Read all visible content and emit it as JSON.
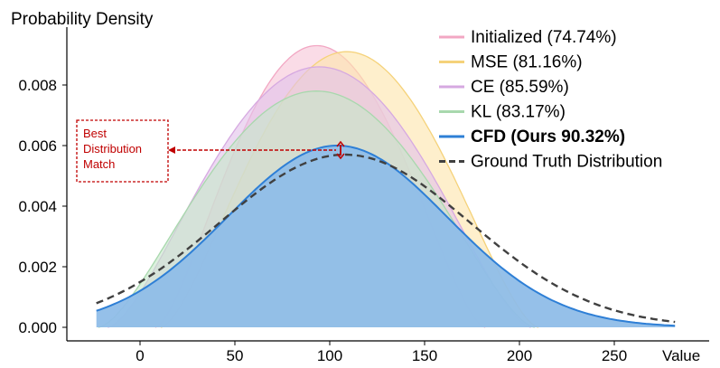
{
  "chart_data": {
    "type": "area",
    "title": "Probability Density",
    "xlabel": "Value",
    "ylabel": "",
    "xlim": [
      -30,
      300
    ],
    "ylim": [
      -0.0005,
      0.0094
    ],
    "x_ticks": [
      0,
      50,
      100,
      150,
      200,
      250
    ],
    "x_tick_labels": [
      "0",
      "50",
      "100",
      "150",
      "200",
      "250"
    ],
    "y_ticks": [
      0.0,
      0.002,
      0.004,
      0.006,
      0.008
    ],
    "y_tick_labels": [
      "0.000",
      "0.002",
      "0.004",
      "0.006",
      "0.008"
    ],
    "grid": false,
    "legend_position": "top-right",
    "series": [
      {
        "name": "Initialized (74.74%)",
        "style": "filled-area",
        "mean": 78,
        "peak": 0.0093,
        "support": [
          8,
          182
        ],
        "fill": "#f7c6d8",
        "stroke": "#f2a7c3"
      },
      {
        "name": "MSE (81.16%)",
        "style": "filled-area",
        "mean": 97,
        "peak": 0.0091,
        "support": [
          11,
          210
        ],
        "fill": "#fde5ad",
        "stroke": "#f5d27a"
      },
      {
        "name": "CE (85.59%)",
        "style": "filled-area",
        "mean": 94,
        "peak": 0.0086,
        "support": [
          -17,
          206
        ],
        "fill": "#e2c2ea",
        "stroke": "#d6a9e1"
      },
      {
        "name": "KL (83.17%)",
        "style": "filled-area",
        "mean": 93,
        "peak": 0.0078,
        "support": [
          -22,
          208
        ],
        "fill": "#c6e6c9",
        "stroke": "#a8d8ad"
      },
      {
        "name": "CFD (Ours 90.32%)",
        "style": "filled-area",
        "mean": 104,
        "peak": 0.006,
        "sigma": 58,
        "range": [
          -23,
          282
        ],
        "fill": "#8fbde8",
        "stroke": "#2e7fd6"
      },
      {
        "name": "Ground Truth Distribution",
        "style": "dashed-line",
        "mean": 108,
        "peak": 0.0057,
        "sigma": 66,
        "range": [
          -23,
          282
        ],
        "stroke": "#404040"
      }
    ],
    "annotations": [
      {
        "text": "Best Distribution Match",
        "lines": [
          "Best",
          "Distribution",
          "Match"
        ],
        "color": "#c00000"
      }
    ]
  }
}
